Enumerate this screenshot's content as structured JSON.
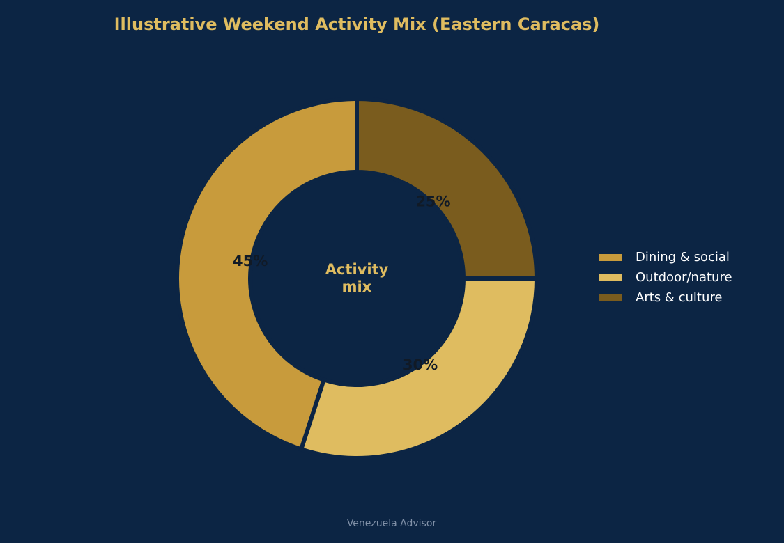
{
  "chart_data": {
    "type": "donut",
    "title": "Illustrative Weekend Activity Mix (Eastern Caracas)",
    "categories": [
      "Dining & social",
      "Outdoor/nature",
      "Arts & culture"
    ],
    "values": [
      45,
      30,
      25
    ],
    "value_labels": [
      "45%",
      "30%",
      "25%"
    ],
    "colors": [
      "#c89b3c",
      "#dfbc60",
      "#7a5c1e"
    ],
    "center_label": [
      "Activity",
      "mix"
    ],
    "legend": "right",
    "footer": "Venezuela Advisor"
  }
}
